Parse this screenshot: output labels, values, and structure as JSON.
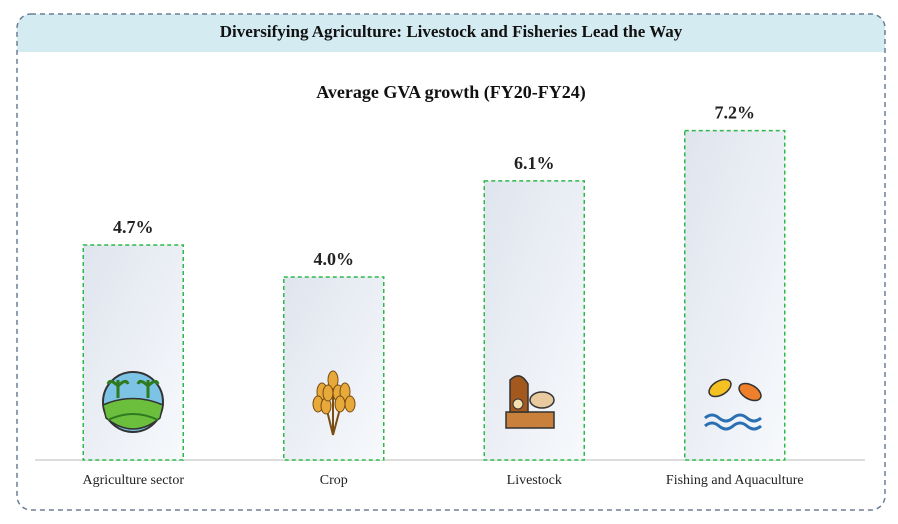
{
  "header": {
    "title": "Diversifying Agriculture: Livestock and Fisheries Lead the Way"
  },
  "chart_data": {
    "type": "bar",
    "title": "Average GVA growth (FY20-FY24)",
    "categories": [
      "Agriculture sector",
      "Crop",
      "Livestock",
      "Fishing and Aquaculture"
    ],
    "values": [
      4.7,
      4.0,
      6.1,
      7.2
    ],
    "value_labels": [
      "4.7%",
      "4.0%",
      "6.1%",
      "7.2%"
    ],
    "color": "#2db84a",
    "ylim": [
      0,
      8
    ]
  }
}
